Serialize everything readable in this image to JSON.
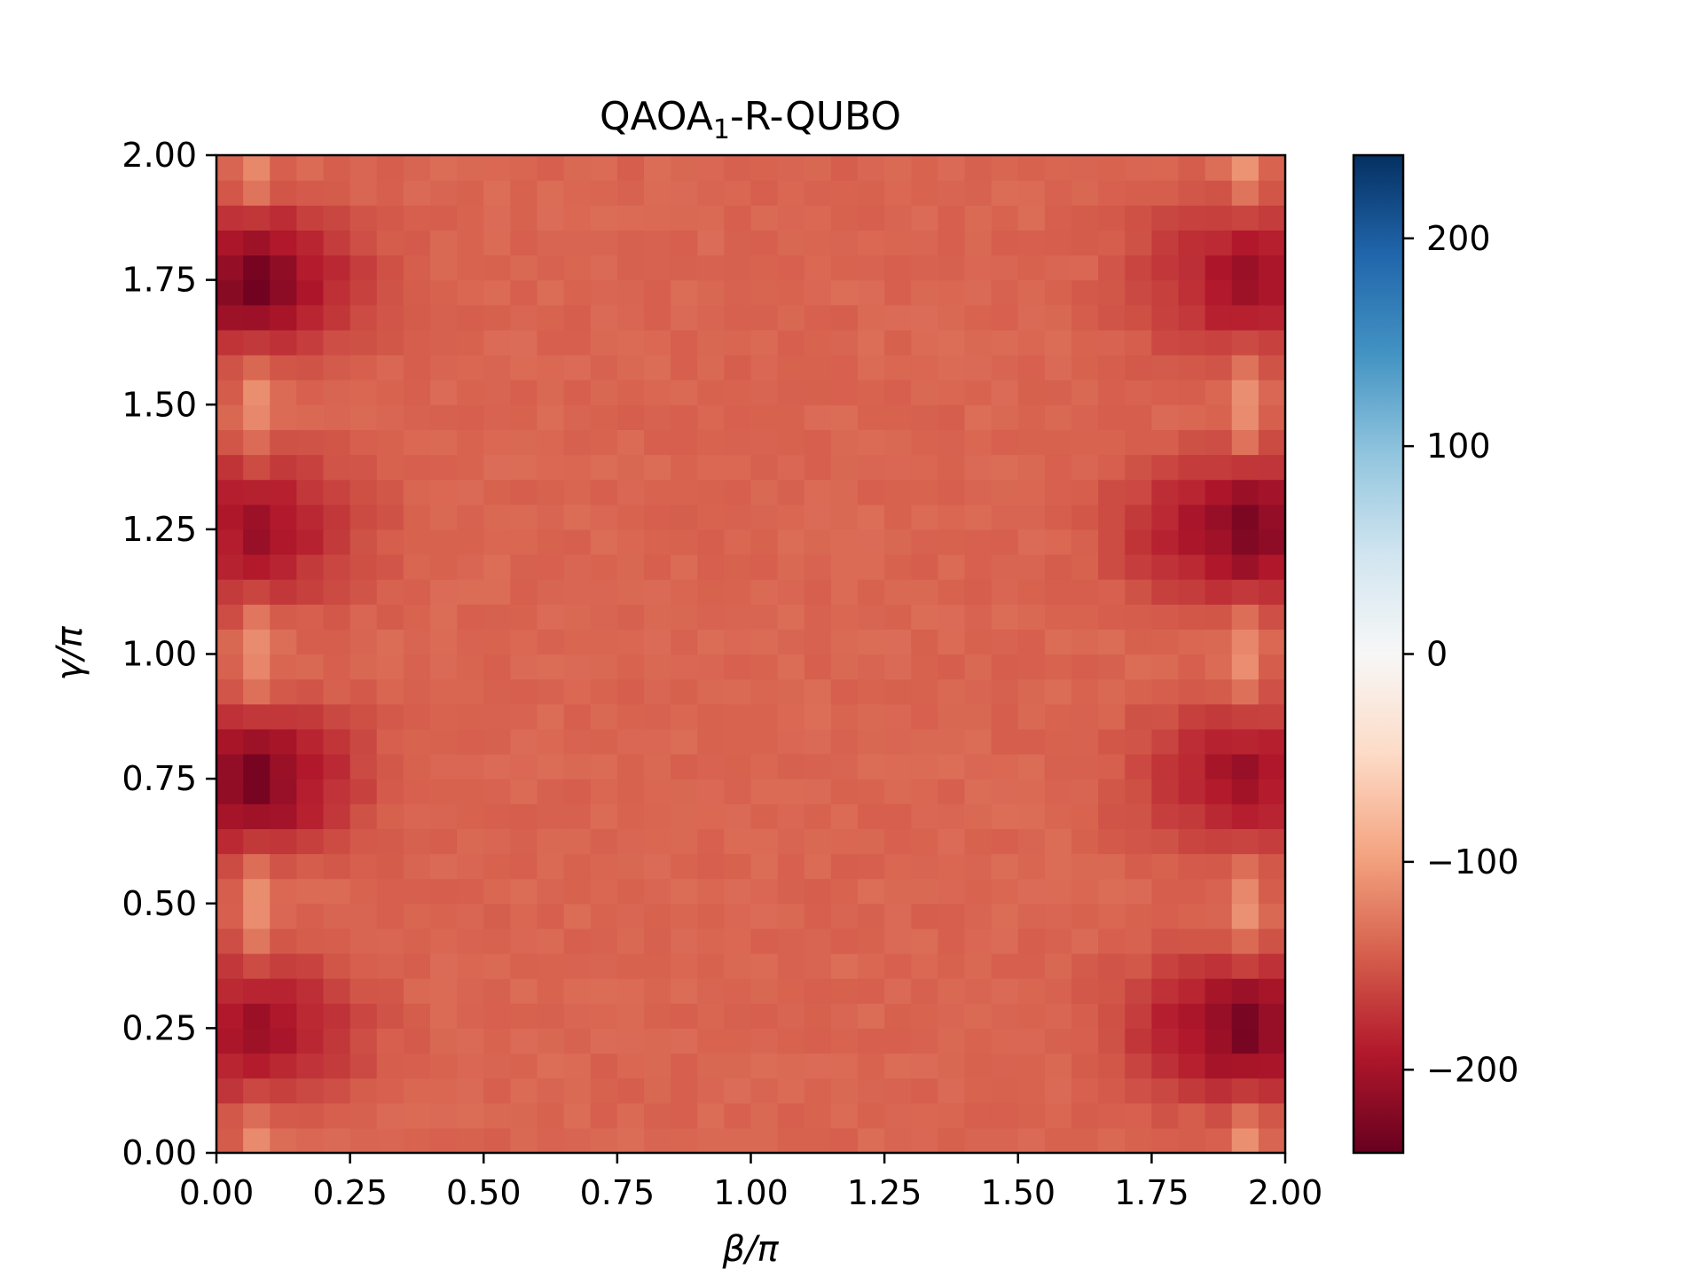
{
  "chart_data": {
    "type": "heatmap",
    "title": "QAOA",
    "title_subscript": "1",
    "title_suffix": "-R-QUBO",
    "xlabel": "β/π",
    "ylabel": "γ/π",
    "xlim": [
      0,
      2
    ],
    "ylim": [
      0,
      2
    ],
    "x_ticks": [
      "0.00",
      "0.25",
      "0.50",
      "0.75",
      "1.00",
      "1.25",
      "1.50",
      "1.75",
      "2.00"
    ],
    "y_ticks": [
      "0.00",
      "0.25",
      "0.50",
      "0.75",
      "1.00",
      "1.25",
      "1.50",
      "1.75",
      "2.00"
    ],
    "colormap": "RdBu",
    "colorbar": {
      "range": [
        -240,
        240
      ],
      "ticks": [
        -200,
        -100,
        0,
        100,
        200
      ],
      "tick_labels": [
        "−200",
        "−100",
        "0",
        "100",
        "200"
      ]
    },
    "grid": false,
    "x_bins": 40,
    "y_bins": 40,
    "description_of_values": "Mostly about -140 everywhere; minima near -240 at left and right edges around gamma/pi = 0.25, 0.75, 1.25, 1.75; lighter stripes near -110 at beta/pi ~ 0.08 and ~ 1.92"
  }
}
